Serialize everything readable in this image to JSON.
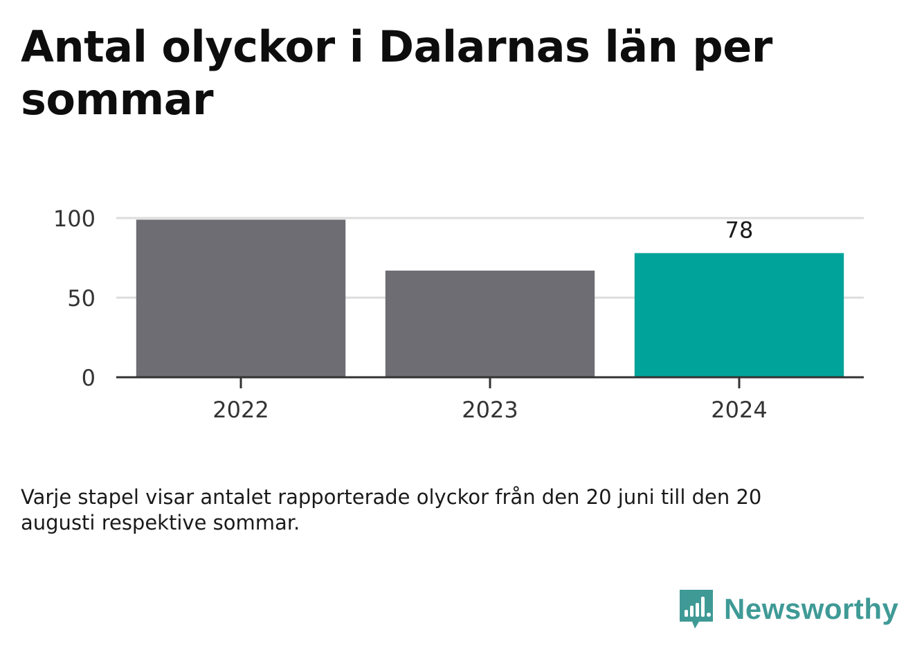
{
  "title": "Antal olyckor i Dalarnas län per sommar",
  "note": "Varje stapel visar antalet rapporterade olyckor från den 20 juni till den 20 augusti respektive sommar.",
  "brand": {
    "name": "Newsworthy",
    "icon": "newsworthy-logo-icon",
    "color": "#3f9a96"
  },
  "chart_data": {
    "type": "bar",
    "categories": [
      "2022",
      "2023",
      "2024"
    ],
    "values": [
      99,
      67,
      78
    ],
    "ylim": [
      0,
      100
    ],
    "yticks": [
      0,
      50,
      100
    ],
    "ytick_labels": [
      "0",
      "50",
      "100"
    ],
    "data_labels": [
      null,
      null,
      "78"
    ],
    "colors": [
      "#6e6d73",
      "#6e6d73",
      "#00a39a"
    ],
    "grid": true,
    "legend": "none"
  }
}
